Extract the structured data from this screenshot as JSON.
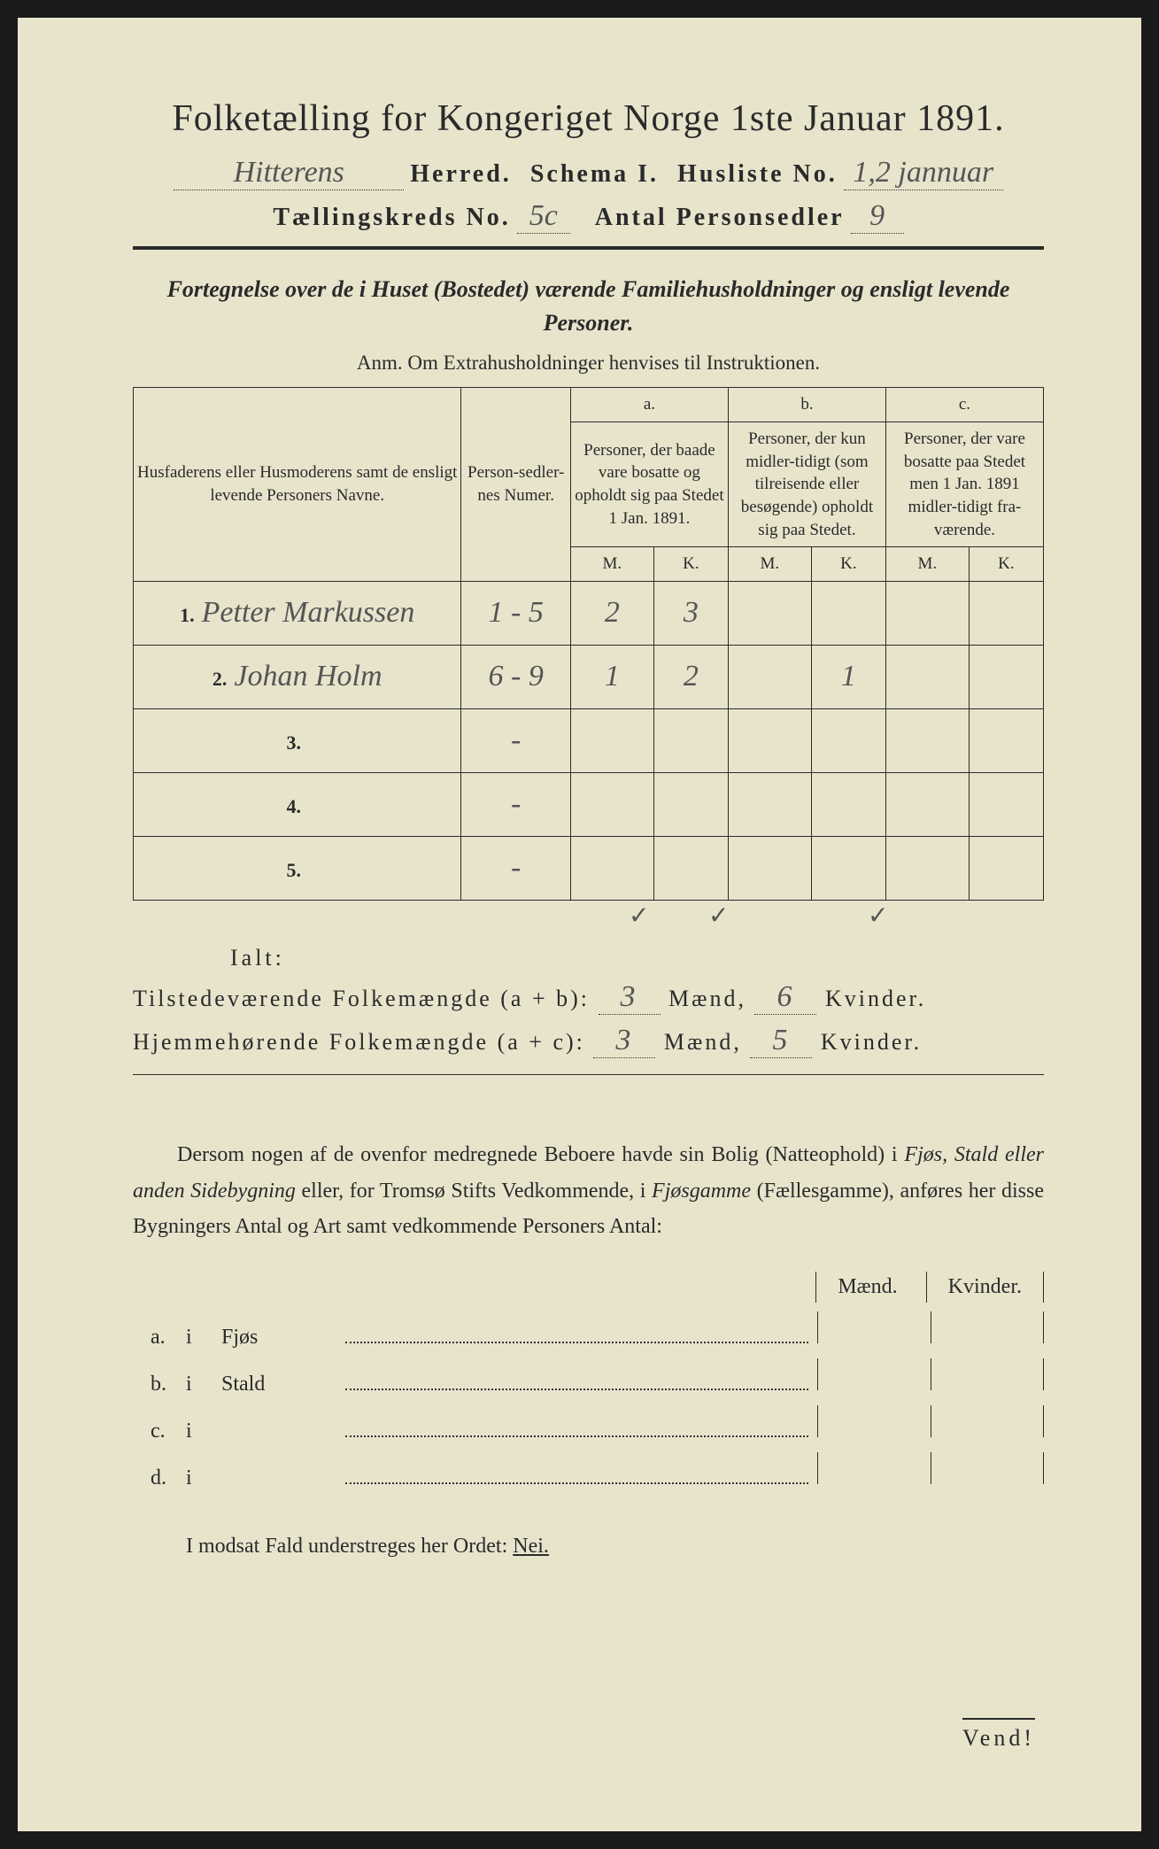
{
  "title": "Folketælling for Kongeriget Norge 1ste Januar 1891.",
  "herred_value": "Hitterens",
  "herred_label": "Herred.",
  "schema_label": "Schema I.",
  "husliste_label": "Husliste No.",
  "husliste_value": "1,2 jannuar",
  "kreds_label": "Tællingskreds No.",
  "kreds_value": "5c",
  "antal_label": "Antal Personsedler",
  "antal_value": "9",
  "subtitle": "Fortegnelse over de i Huset (Bostedet) værende Familiehusholdninger og ensligt levende Personer.",
  "anm": "Anm.  Om Extrahusholdninger henvises til Instruktionen.",
  "headers": {
    "name": "Husfaderens eller Husmoderens samt de ensligt levende Personers Navne.",
    "num": "Person-sedler-nes Numer.",
    "a_top": "a.",
    "a": "Personer, der baade vare bosatte og opholdt sig paa Stedet 1 Jan. 1891.",
    "b_top": "b.",
    "b": "Personer, der kun midler-tidigt (som tilreisende eller besøgende) opholdt sig paa Stedet.",
    "c_top": "c.",
    "c": "Personer, der vare bosatte paa Stedet men 1 Jan. 1891 midler-tidigt fra-værende.",
    "M": "M.",
    "K": "K."
  },
  "rows": [
    {
      "n": "1.",
      "name": "Petter Markussen",
      "num": "1 - 5",
      "aM": "2",
      "aK": "3",
      "bM": "",
      "bK": "",
      "cM": "",
      "cK": ""
    },
    {
      "n": "2.",
      "name": "Johan Holm",
      "num": "6 - 9",
      "aM": "1",
      "aK": "2",
      "bM": "",
      "bK": "1",
      "cM": "",
      "cK": ""
    },
    {
      "n": "3.",
      "name": "",
      "num": "-",
      "aM": "",
      "aK": "",
      "bM": "",
      "bK": "",
      "cM": "",
      "cK": ""
    },
    {
      "n": "4.",
      "name": "",
      "num": "-",
      "aM": "",
      "aK": "",
      "bM": "",
      "bK": "",
      "cM": "",
      "cK": ""
    },
    {
      "n": "5.",
      "name": "",
      "num": "-",
      "aM": "",
      "aK": "",
      "bM": "",
      "bK": "",
      "cM": "",
      "cK": ""
    }
  ],
  "ialt": "Ialt:",
  "checks": [
    "✓",
    "✓",
    "✓"
  ],
  "tilstede_label": "Tilstedeværende Folkemængde (a + b):",
  "tilstede_m": "3",
  "tilstede_k": "6",
  "hjemme_label": "Hjemmehørende Folkemængde (a + c):",
  "hjemme_m": "3",
  "hjemme_k": "5",
  "maend": "Mænd,",
  "kvinder": "Kvinder.",
  "para": "Dersom nogen af de ovenfor medregnede Beboere havde sin Bolig (Natteophold) i Fjøs, Stald eller anden Sidebygning eller, for Tromsø Stifts Vedkommende, i Fjøsgamme (Fællesgamme), anføres her disse Bygningers Antal og Art samt vedkommende Personers Antal:",
  "mk_m": "Mænd.",
  "mk_k": "Kvinder.",
  "abcd": [
    {
      "l": "a.",
      "i": "i",
      "t": "Fjøs"
    },
    {
      "l": "b.",
      "i": "i",
      "t": "Stald"
    },
    {
      "l": "c.",
      "i": "i",
      "t": ""
    },
    {
      "l": "d.",
      "i": "i",
      "t": ""
    }
  ],
  "nei_line_pre": "I modsat Fald understreges her Ordet: ",
  "nei": "Nei.",
  "vend": "Vend!",
  "colors": {
    "paper": "#e8e4cc",
    "ink": "#2a2a2a",
    "handwriting": "#555555"
  }
}
